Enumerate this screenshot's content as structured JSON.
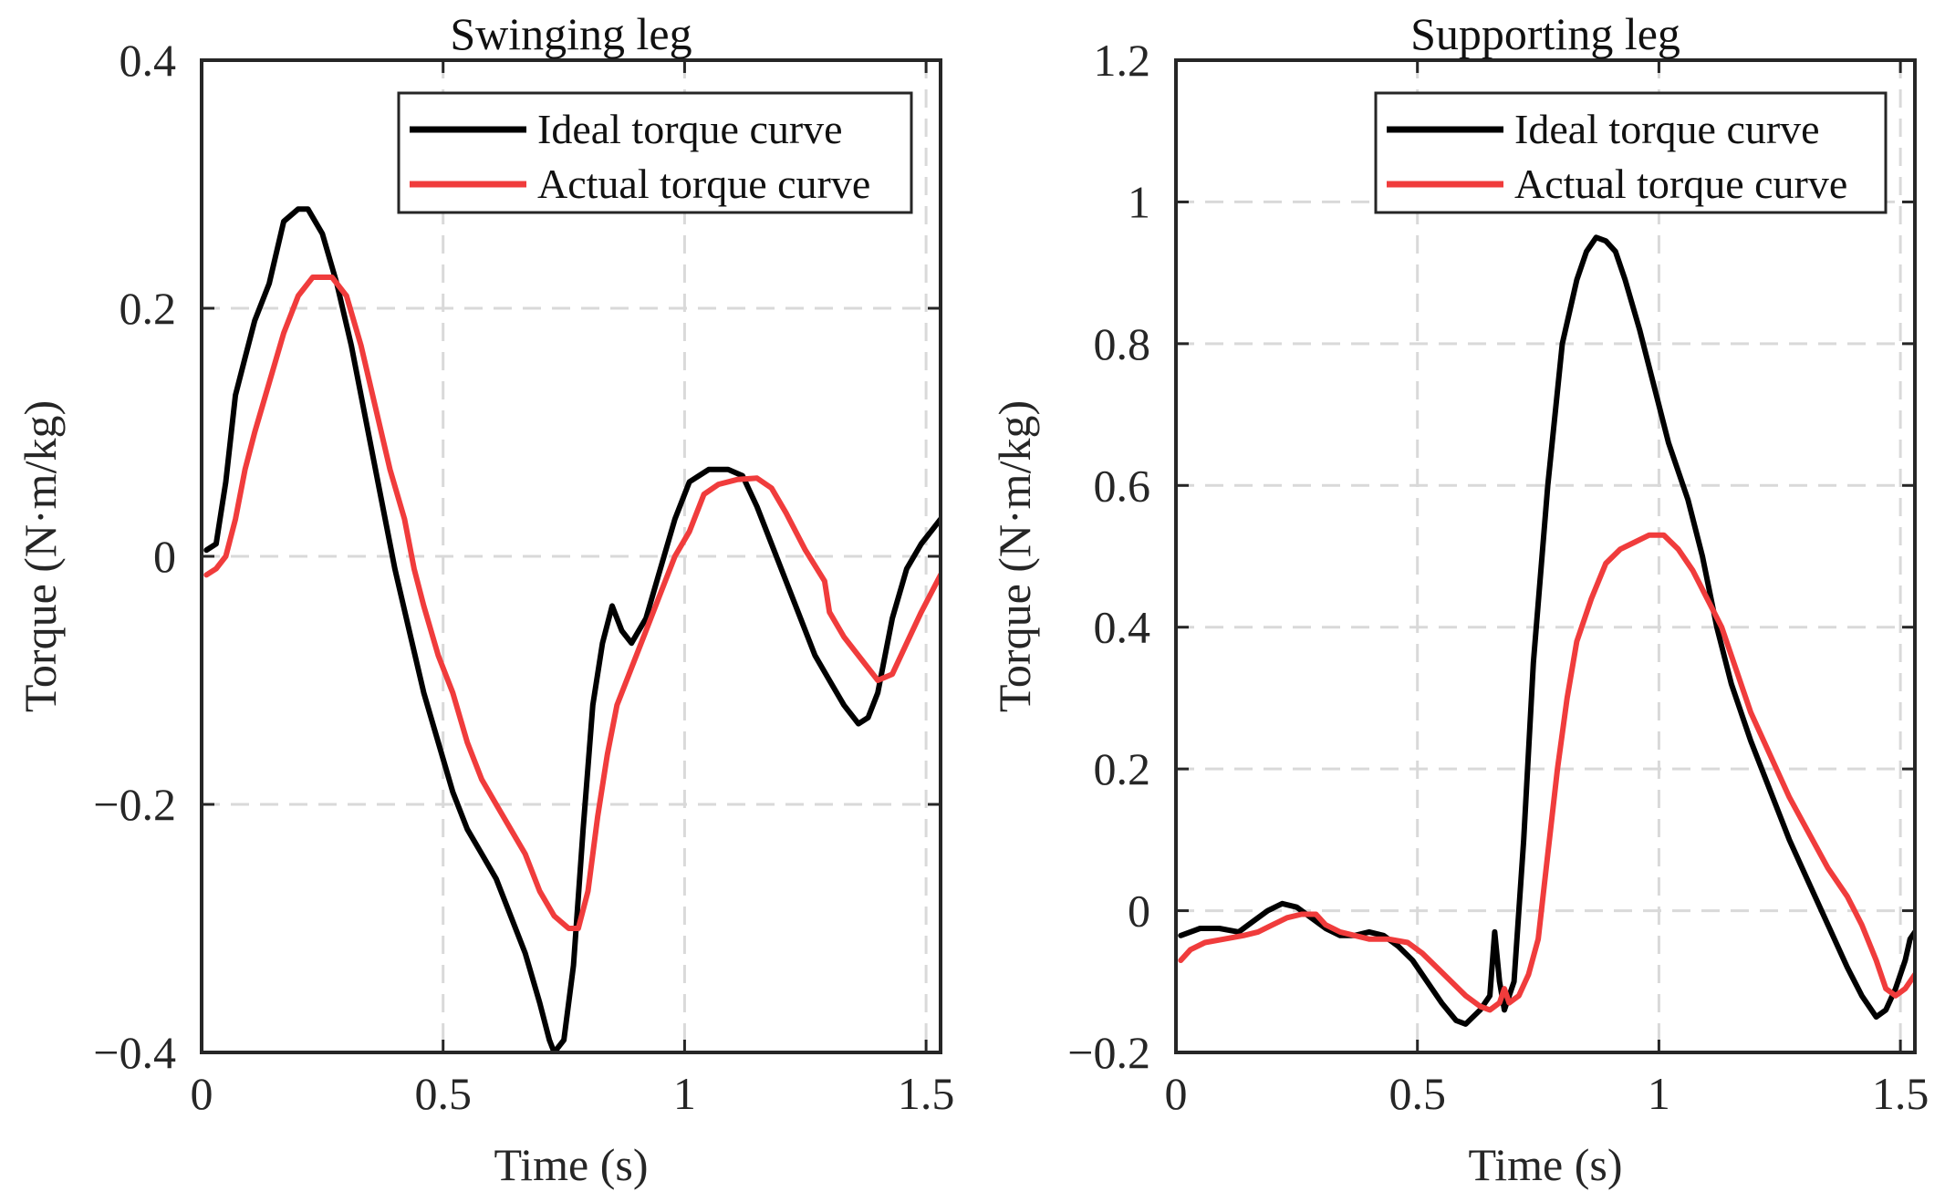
{
  "chart_data": [
    {
      "type": "line",
      "title": "Swinging leg",
      "xlabel": "Time (s)",
      "ylabel": "Torque (N·m/kg)",
      "xlim": [
        0,
        1.53
      ],
      "ylim": [
        -0.4,
        0.4
      ],
      "xticks": [
        0,
        0.5,
        1,
        1.5
      ],
      "xtick_labels": [
        "0",
        "0.5",
        "1",
        "1.5"
      ],
      "yticks": [
        -0.4,
        -0.2,
        0,
        0.2,
        0.4
      ],
      "ytick_labels": [
        "−0.4",
        "−0.2",
        "0",
        "0.2",
        "0.4"
      ],
      "grid": true,
      "legend_position": "top-right",
      "series": [
        {
          "name": "Ideal torque curve",
          "color": "#000000",
          "points": [
            [
              0.01,
              0.005
            ],
            [
              0.03,
              0.01
            ],
            [
              0.05,
              0.06
            ],
            [
              0.07,
              0.13
            ],
            [
              0.09,
              0.16
            ],
            [
              0.11,
              0.19
            ],
            [
              0.14,
              0.22
            ],
            [
              0.17,
              0.27
            ],
            [
              0.2,
              0.28
            ],
            [
              0.22,
              0.28
            ],
            [
              0.25,
              0.26
            ],
            [
              0.28,
              0.22
            ],
            [
              0.31,
              0.17
            ],
            [
              0.34,
              0.11
            ],
            [
              0.37,
              0.05
            ],
            [
              0.4,
              -0.01
            ],
            [
              0.43,
              -0.06
            ],
            [
              0.46,
              -0.11
            ],
            [
              0.49,
              -0.15
            ],
            [
              0.52,
              -0.19
            ],
            [
              0.55,
              -0.22
            ],
            [
              0.58,
              -0.24
            ],
            [
              0.61,
              -0.26
            ],
            [
              0.64,
              -0.29
            ],
            [
              0.67,
              -0.32
            ],
            [
              0.7,
              -0.36
            ],
            [
              0.72,
              -0.39
            ],
            [
              0.73,
              -0.4
            ],
            [
              0.75,
              -0.39
            ],
            [
              0.77,
              -0.33
            ],
            [
              0.79,
              -0.22
            ],
            [
              0.81,
              -0.12
            ],
            [
              0.83,
              -0.07
            ],
            [
              0.85,
              -0.04
            ],
            [
              0.87,
              -0.06
            ],
            [
              0.89,
              -0.07
            ],
            [
              0.92,
              -0.05
            ],
            [
              0.95,
              -0.01
            ],
            [
              0.98,
              0.03
            ],
            [
              1.01,
              0.06
            ],
            [
              1.05,
              0.07
            ],
            [
              1.09,
              0.07
            ],
            [
              1.12,
              0.065
            ],
            [
              1.15,
              0.04
            ],
            [
              1.18,
              0.01
            ],
            [
              1.21,
              -0.02
            ],
            [
              1.24,
              -0.05
            ],
            [
              1.27,
              -0.08
            ],
            [
              1.3,
              -0.1
            ],
            [
              1.33,
              -0.12
            ],
            [
              1.36,
              -0.135
            ],
            [
              1.38,
              -0.13
            ],
            [
              1.4,
              -0.11
            ],
            [
              1.43,
              -0.05
            ],
            [
              1.46,
              -0.01
            ],
            [
              1.49,
              0.01
            ],
            [
              1.53,
              0.03
            ]
          ]
        },
        {
          "name": "Actual torque curve",
          "color": "#f03c3c",
          "points": [
            [
              0.01,
              -0.015
            ],
            [
              0.03,
              -0.01
            ],
            [
              0.05,
              0.0
            ],
            [
              0.07,
              0.03
            ],
            [
              0.09,
              0.07
            ],
            [
              0.11,
              0.1
            ],
            [
              0.14,
              0.14
            ],
            [
              0.17,
              0.18
            ],
            [
              0.2,
              0.21
            ],
            [
              0.23,
              0.225
            ],
            [
              0.27,
              0.225
            ],
            [
              0.3,
              0.21
            ],
            [
              0.33,
              0.17
            ],
            [
              0.36,
              0.12
            ],
            [
              0.39,
              0.07
            ],
            [
              0.42,
              0.03
            ],
            [
              0.44,
              -0.01
            ],
            [
              0.46,
              -0.04
            ],
            [
              0.49,
              -0.08
            ],
            [
              0.52,
              -0.11
            ],
            [
              0.55,
              -0.15
            ],
            [
              0.58,
              -0.18
            ],
            [
              0.61,
              -0.2
            ],
            [
              0.64,
              -0.22
            ],
            [
              0.67,
              -0.24
            ],
            [
              0.7,
              -0.27
            ],
            [
              0.73,
              -0.29
            ],
            [
              0.76,
              -0.3
            ],
            [
              0.78,
              -0.3
            ],
            [
              0.8,
              -0.27
            ],
            [
              0.82,
              -0.21
            ],
            [
              0.84,
              -0.16
            ],
            [
              0.86,
              -0.12
            ],
            [
              0.89,
              -0.09
            ],
            [
              0.92,
              -0.06
            ],
            [
              0.95,
              -0.03
            ],
            [
              0.98,
              0.0
            ],
            [
              1.01,
              0.02
            ],
            [
              1.04,
              0.05
            ],
            [
              1.07,
              0.058
            ],
            [
              1.11,
              0.062
            ],
            [
              1.15,
              0.063
            ],
            [
              1.18,
              0.055
            ],
            [
              1.21,
              0.035
            ],
            [
              1.25,
              0.005
            ],
            [
              1.29,
              -0.02
            ],
            [
              1.3,
              -0.045
            ],
            [
              1.33,
              -0.065
            ],
            [
              1.37,
              -0.085
            ],
            [
              1.4,
              -0.1
            ],
            [
              1.43,
              -0.095
            ],
            [
              1.46,
              -0.07
            ],
            [
              1.49,
              -0.045
            ],
            [
              1.53,
              -0.015
            ]
          ]
        }
      ]
    },
    {
      "type": "line",
      "title": "Supporting leg",
      "xlabel": "Time (s)",
      "ylabel": "Torque (N·m/kg)",
      "xlim": [
        0,
        1.53
      ],
      "ylim": [
        -0.2,
        1.2
      ],
      "xticks": [
        0,
        0.5,
        1,
        1.5
      ],
      "xtick_labels": [
        "0",
        "0.5",
        "1",
        "1.5"
      ],
      "yticks": [
        -0.2,
        0,
        0.2,
        0.4,
        0.6,
        0.8,
        1,
        1.2
      ],
      "ytick_labels": [
        "−0.2",
        "0",
        "0.2",
        "0.4",
        "0.6",
        "0.8",
        "1",
        "1.2"
      ],
      "grid": true,
      "legend_position": "top-right",
      "series": [
        {
          "name": "Ideal torque curve",
          "color": "#000000",
          "points": [
            [
              0.01,
              -0.035
            ],
            [
              0.05,
              -0.025
            ],
            [
              0.09,
              -0.025
            ],
            [
              0.13,
              -0.03
            ],
            [
              0.16,
              -0.015
            ],
            [
              0.19,
              0.0
            ],
            [
              0.22,
              0.01
            ],
            [
              0.25,
              0.005
            ],
            [
              0.28,
              -0.01
            ],
            [
              0.31,
              -0.025
            ],
            [
              0.34,
              -0.035
            ],
            [
              0.37,
              -0.035
            ],
            [
              0.4,
              -0.03
            ],
            [
              0.43,
              -0.035
            ],
            [
              0.46,
              -0.05
            ],
            [
              0.49,
              -0.07
            ],
            [
              0.52,
              -0.1
            ],
            [
              0.55,
              -0.13
            ],
            [
              0.58,
              -0.155
            ],
            [
              0.6,
              -0.16
            ],
            [
              0.63,
              -0.14
            ],
            [
              0.65,
              -0.12
            ],
            [
              0.66,
              -0.03
            ],
            [
              0.67,
              -0.1
            ],
            [
              0.68,
              -0.14
            ],
            [
              0.7,
              -0.1
            ],
            [
              0.72,
              0.1
            ],
            [
              0.74,
              0.35
            ],
            [
              0.77,
              0.6
            ],
            [
              0.8,
              0.8
            ],
            [
              0.83,
              0.89
            ],
            [
              0.85,
              0.93
            ],
            [
              0.87,
              0.95
            ],
            [
              0.89,
              0.945
            ],
            [
              0.91,
              0.93
            ],
            [
              0.93,
              0.89
            ],
            [
              0.96,
              0.82
            ],
            [
              0.99,
              0.74
            ],
            [
              1.02,
              0.66
            ],
            [
              1.06,
              0.58
            ],
            [
              1.09,
              0.5
            ],
            [
              1.12,
              0.4
            ],
            [
              1.15,
              0.32
            ],
            [
              1.19,
              0.24
            ],
            [
              1.23,
              0.17
            ],
            [
              1.27,
              0.1
            ],
            [
              1.31,
              0.04
            ],
            [
              1.35,
              -0.02
            ],
            [
              1.39,
              -0.08
            ],
            [
              1.42,
              -0.12
            ],
            [
              1.45,
              -0.15
            ],
            [
              1.47,
              -0.14
            ],
            [
              1.49,
              -0.11
            ],
            [
              1.51,
              -0.07
            ],
            [
              1.52,
              -0.04
            ],
            [
              1.53,
              -0.03
            ]
          ]
        },
        {
          "name": "Actual torque curve",
          "color": "#f03c3c",
          "points": [
            [
              0.01,
              -0.07
            ],
            [
              0.03,
              -0.055
            ],
            [
              0.06,
              -0.045
            ],
            [
              0.1,
              -0.04
            ],
            [
              0.14,
              -0.035
            ],
            [
              0.17,
              -0.03
            ],
            [
              0.2,
              -0.02
            ],
            [
              0.23,
              -0.01
            ],
            [
              0.26,
              -0.005
            ],
            [
              0.29,
              -0.005
            ],
            [
              0.31,
              -0.02
            ],
            [
              0.34,
              -0.03
            ],
            [
              0.37,
              -0.035
            ],
            [
              0.4,
              -0.04
            ],
            [
              0.44,
              -0.04
            ],
            [
              0.48,
              -0.045
            ],
            [
              0.51,
              -0.06
            ],
            [
              0.54,
              -0.08
            ],
            [
              0.57,
              -0.1
            ],
            [
              0.6,
              -0.12
            ],
            [
              0.63,
              -0.135
            ],
            [
              0.65,
              -0.14
            ],
            [
              0.67,
              -0.13
            ],
            [
              0.68,
              -0.11
            ],
            [
              0.69,
              -0.13
            ],
            [
              0.71,
              -0.12
            ],
            [
              0.73,
              -0.09
            ],
            [
              0.75,
              -0.04
            ],
            [
              0.77,
              0.08
            ],
            [
              0.79,
              0.2
            ],
            [
              0.81,
              0.3
            ],
            [
              0.83,
              0.38
            ],
            [
              0.86,
              0.44
            ],
            [
              0.89,
              0.49
            ],
            [
              0.92,
              0.51
            ],
            [
              0.95,
              0.52
            ],
            [
              0.98,
              0.53
            ],
            [
              1.01,
              0.53
            ],
            [
              1.04,
              0.51
            ],
            [
              1.07,
              0.48
            ],
            [
              1.1,
              0.44
            ],
            [
              1.13,
              0.4
            ],
            [
              1.16,
              0.34
            ],
            [
              1.19,
              0.28
            ],
            [
              1.23,
              0.22
            ],
            [
              1.27,
              0.16
            ],
            [
              1.31,
              0.11
            ],
            [
              1.35,
              0.06
            ],
            [
              1.39,
              0.02
            ],
            [
              1.42,
              -0.02
            ],
            [
              1.45,
              -0.07
            ],
            [
              1.47,
              -0.11
            ],
            [
              1.49,
              -0.12
            ],
            [
              1.51,
              -0.11
            ],
            [
              1.53,
              -0.09
            ]
          ]
        }
      ]
    }
  ]
}
